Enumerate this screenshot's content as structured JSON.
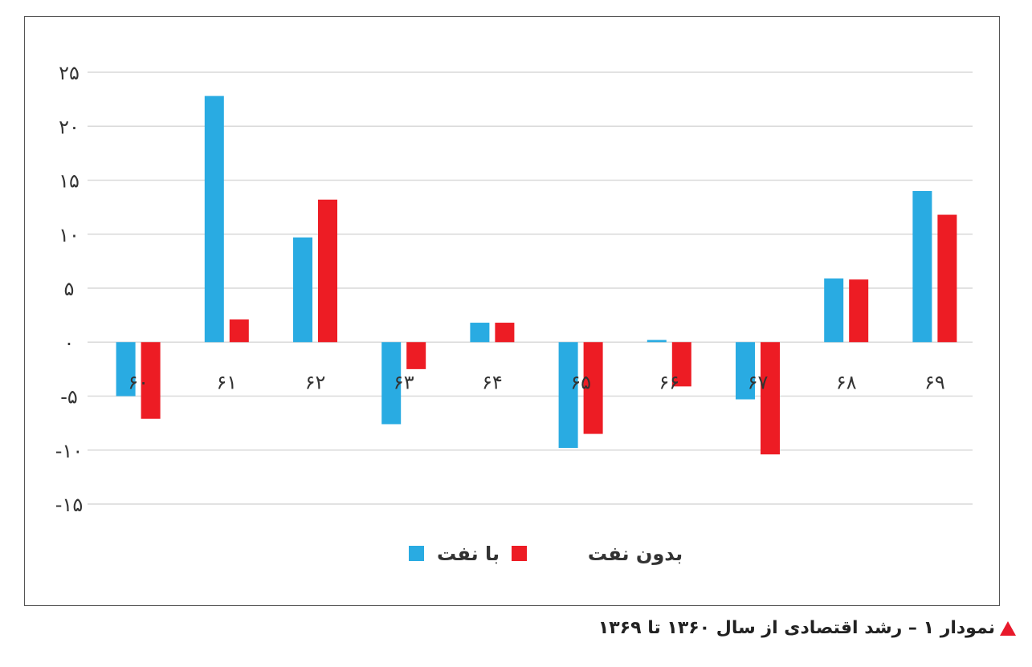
{
  "chart_data": {
    "type": "bar",
    "categories": [
      "۶۰",
      "۶۱",
      "۶۲",
      "۶۳",
      "۶۴",
      "۶۵",
      "۶۶",
      "۶۷",
      "۶۸",
      "۶۹"
    ],
    "series": [
      {
        "name": "با نفت",
        "color": "#29abe2",
        "values": [
          -5,
          22.8,
          9.7,
          -7.6,
          1.8,
          -9.8,
          0.2,
          -5.3,
          5.9,
          14
        ]
      },
      {
        "name": "بدون نفت",
        "color": "#ed1c24",
        "values": [
          -7.1,
          2.1,
          13.2,
          -2.5,
          1.8,
          -8.5,
          -4.1,
          -10.4,
          5.8,
          11.8
        ]
      }
    ],
    "y_ticks": [
      {
        "value": 25,
        "label": "۲۵"
      },
      {
        "value": 20,
        "label": "۲۰"
      },
      {
        "value": 15,
        "label": "۱۵"
      },
      {
        "value": 10,
        "label": "۱۰"
      },
      {
        "value": 5,
        "label": "۵"
      },
      {
        "value": 0,
        "label": "۰"
      },
      {
        "value": -5,
        "label": "-۵"
      },
      {
        "value": -10,
        "label": "-۱۰"
      },
      {
        "value": -15,
        "label": "-۱۵"
      }
    ],
    "ylim": [
      -15,
      25
    ],
    "grid": true,
    "legend_position": "bottom"
  },
  "caption": {
    "text": "نمودار ۱ – رشد اقتصادی از سال ۱۳۶۰ تا ۱۳۶۹",
    "marker_color": "#e8192b"
  }
}
